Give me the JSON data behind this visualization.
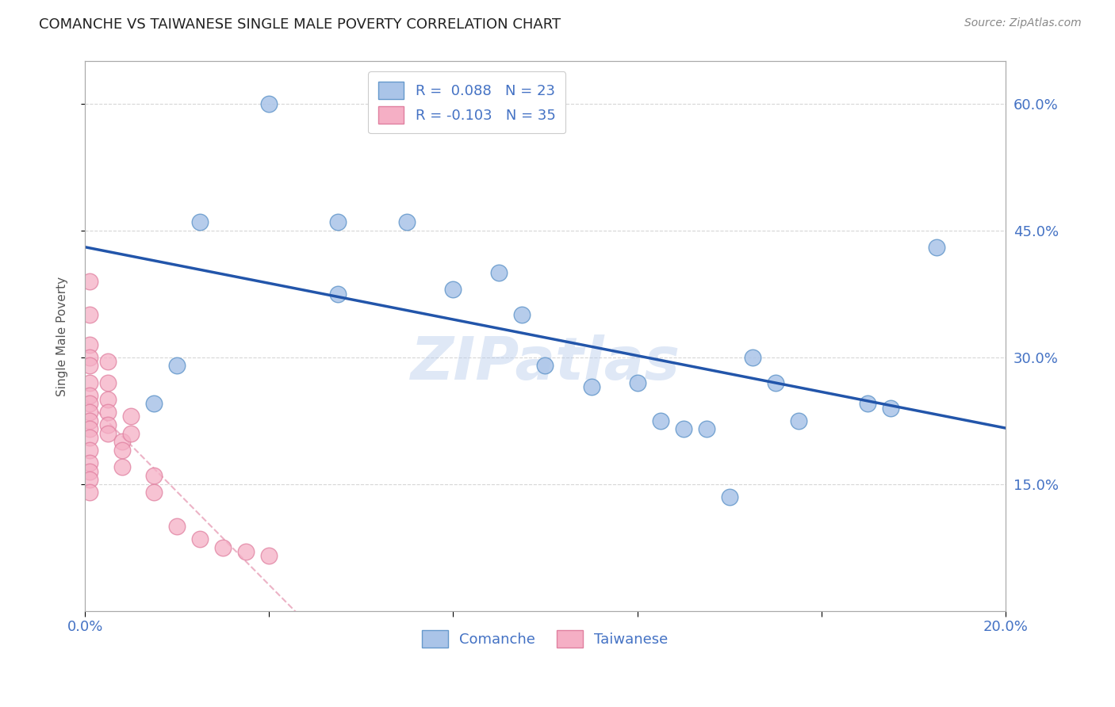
{
  "title": "COMANCHE VS TAIWANESE SINGLE MALE POVERTY CORRELATION CHART",
  "source": "Source: ZipAtlas.com",
  "ylabel": "Single Male Poverty",
  "watermark": "ZIPatlas",
  "xlim": [
    0.0,
    0.2
  ],
  "ylim": [
    0.0,
    0.65
  ],
  "xticks": [
    0.0,
    0.04,
    0.08,
    0.12,
    0.16,
    0.2
  ],
  "xtick_labels": [
    "0.0%",
    "",
    "",
    "",
    "",
    "20.0%"
  ],
  "ytick_labels_right": [
    "15.0%",
    "30.0%",
    "45.0%",
    "60.0%"
  ],
  "yticks_right": [
    0.15,
    0.3,
    0.45,
    0.6
  ],
  "comanche_color": "#aac4e8",
  "taiwanese_color": "#f5afc5",
  "comanche_edge_color": "#6699cc",
  "taiwanese_edge_color": "#e080a0",
  "comanche_line_color": "#2255aa",
  "taiwanese_line_color": "#e8a0b8",
  "legend_R_comanche": "R =  0.088",
  "legend_N_comanche": "N = 23",
  "legend_R_taiwanese": "R = -0.103",
  "legend_N_taiwanese": "N = 35",
  "comanche_x": [
    0.015,
    0.02,
    0.025,
    0.04,
    0.055,
    0.055,
    0.07,
    0.08,
    0.09,
    0.095,
    0.1,
    0.11,
    0.12,
    0.125,
    0.13,
    0.135,
    0.14,
    0.145,
    0.15,
    0.155,
    0.17,
    0.175,
    0.185
  ],
  "comanche_y": [
    0.245,
    0.29,
    0.46,
    0.6,
    0.46,
    0.375,
    0.46,
    0.38,
    0.4,
    0.35,
    0.29,
    0.265,
    0.27,
    0.225,
    0.215,
    0.215,
    0.135,
    0.3,
    0.27,
    0.225,
    0.245,
    0.24,
    0.43
  ],
  "taiwanese_x": [
    0.001,
    0.001,
    0.001,
    0.001,
    0.001,
    0.001,
    0.001,
    0.001,
    0.001,
    0.001,
    0.001,
    0.001,
    0.001,
    0.001,
    0.001,
    0.001,
    0.001,
    0.005,
    0.005,
    0.005,
    0.005,
    0.005,
    0.005,
    0.008,
    0.008,
    0.008,
    0.01,
    0.01,
    0.015,
    0.015,
    0.02,
    0.025,
    0.03,
    0.035,
    0.04
  ],
  "taiwanese_y": [
    0.39,
    0.35,
    0.315,
    0.3,
    0.29,
    0.27,
    0.255,
    0.245,
    0.235,
    0.225,
    0.215,
    0.205,
    0.19,
    0.175,
    0.165,
    0.155,
    0.14,
    0.295,
    0.27,
    0.25,
    0.235,
    0.22,
    0.21,
    0.2,
    0.19,
    0.17,
    0.23,
    0.21,
    0.16,
    0.14,
    0.1,
    0.085,
    0.075,
    0.07,
    0.065
  ],
  "grid_color": "#cccccc",
  "background_color": "#ffffff",
  "title_fontsize": 13,
  "tick_label_color": "#4472c4"
}
